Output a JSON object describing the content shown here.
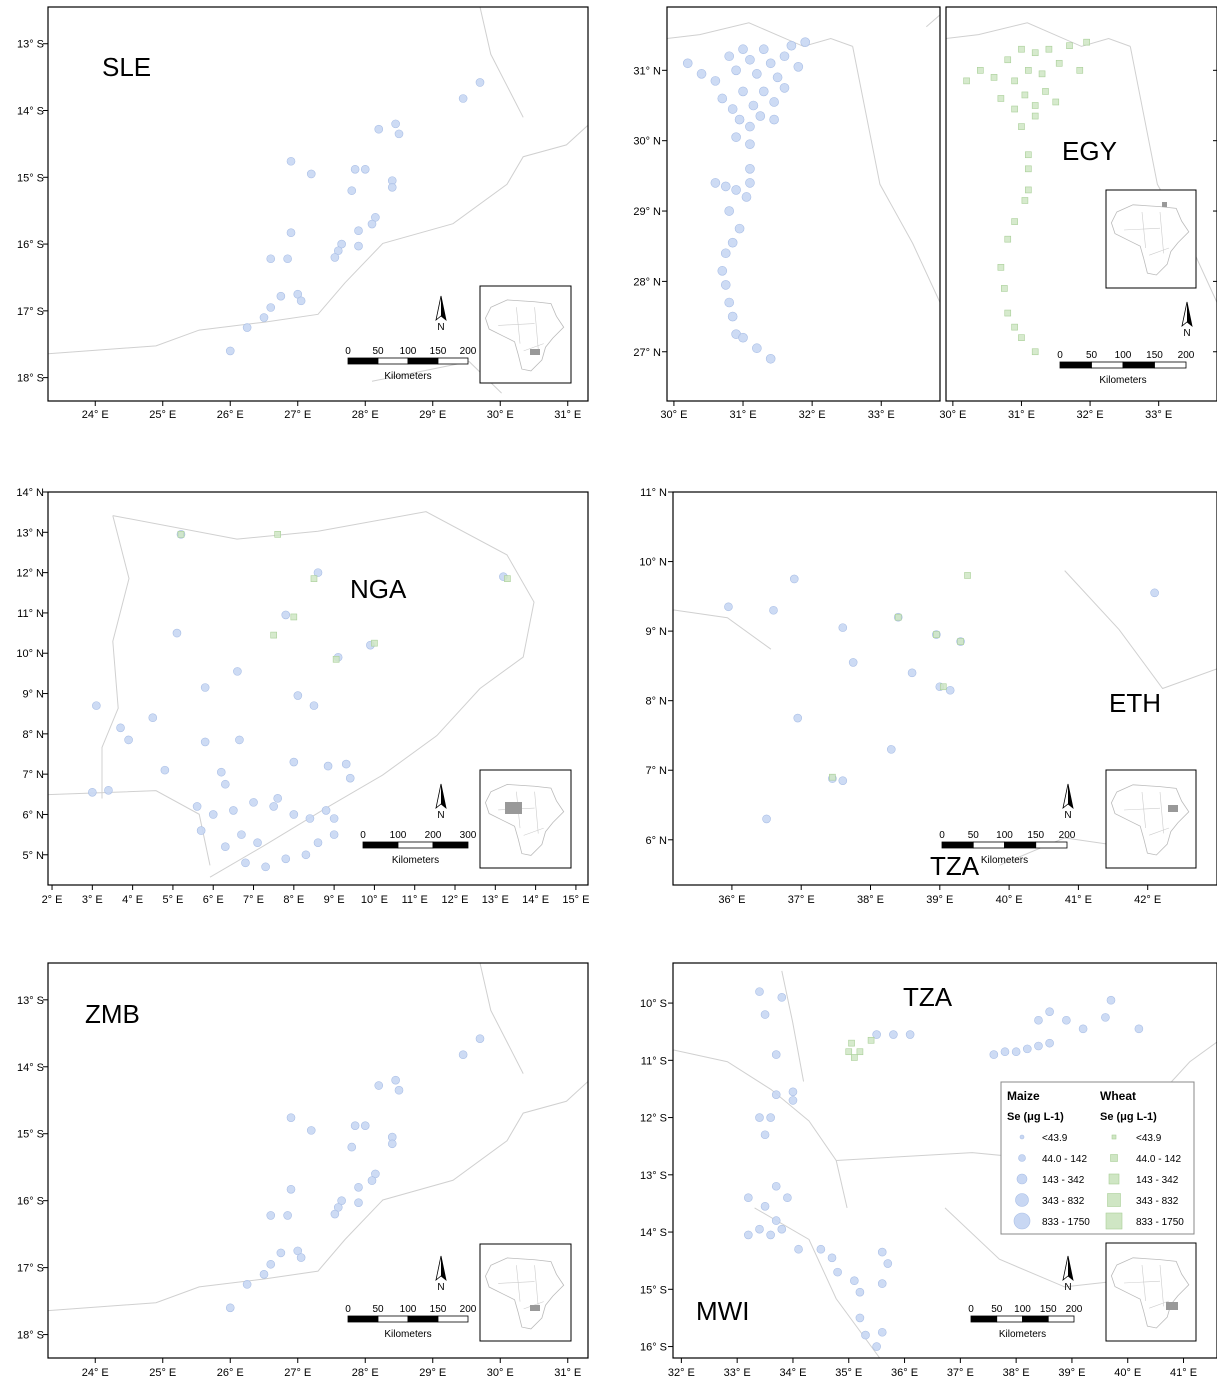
{
  "colors": {
    "maize_fill": "#c8d7f3",
    "maize_stroke": "#aabfe6",
    "wheat_fill": "#cfe6c4",
    "wheat_stroke": "#a9cf98",
    "frame": "#000000",
    "border": "#d0d0d0",
    "inset_marker": "#999999"
  },
  "icons": {
    "north_arrow": "north-arrow-icon",
    "africa_inset": "africa-inset-icon"
  },
  "panels": [
    {
      "id": "sle",
      "country_labels": [
        "SLE"
      ],
      "x_ticks": [
        "24° E",
        "25° E",
        "26° E",
        "27° E",
        "28° E",
        "29° E",
        "30° E",
        "31° E"
      ],
      "y_ticks": [
        "13° S",
        "14° S",
        "15° S",
        "16° S",
        "17° S",
        "18° S"
      ],
      "x_range": [
        23.3,
        31.3
      ],
      "y_range": [
        -18.35,
        -12.45
      ],
      "scale_ticks": [
        "0",
        "50",
        "100",
        "150",
        "200"
      ],
      "scale_unit": "Kilometers",
      "north": "N",
      "maize_points": [
        [
          29.45,
          -13.82
        ],
        [
          29.7,
          -13.58
        ],
        [
          28.2,
          -14.28
        ],
        [
          28.45,
          -14.2
        ],
        [
          28.5,
          -14.35
        ],
        [
          26.9,
          -14.76
        ],
        [
          27.2,
          -14.95
        ],
        [
          27.85,
          -14.88
        ],
        [
          28.0,
          -14.88
        ],
        [
          28.4,
          -15.05
        ],
        [
          28.4,
          -15.15
        ],
        [
          27.8,
          -15.2
        ],
        [
          28.15,
          -15.6
        ],
        [
          28.1,
          -15.7
        ],
        [
          27.9,
          -15.8
        ],
        [
          26.9,
          -15.83
        ],
        [
          27.65,
          -16.0
        ],
        [
          27.6,
          -16.1
        ],
        [
          27.55,
          -16.2
        ],
        [
          27.9,
          -16.03
        ],
        [
          26.6,
          -16.22
        ],
        [
          26.85,
          -16.22
        ],
        [
          26.6,
          -16.95
        ],
        [
          26.5,
          -17.1
        ],
        [
          26.75,
          -16.78
        ],
        [
          27.0,
          -16.75
        ],
        [
          27.05,
          -16.85
        ],
        [
          26.25,
          -17.25
        ],
        [
          26.0,
          -17.6
        ]
      ],
      "wheat_points": []
    },
    {
      "id": "egy-maize",
      "country_labels": [],
      "x_ticks": [
        "30° E",
        "31° E",
        "32° E",
        "33° E"
      ],
      "y_ticks": [
        "31° N",
        "30° N",
        "29° N",
        "28° N",
        "27° N"
      ],
      "x_range": [
        29.9,
        33.85
      ],
      "y_range": [
        26.3,
        31.9
      ],
      "maize_points": [
        [
          30.2,
          31.1
        ],
        [
          30.4,
          30.95
        ],
        [
          30.6,
          30.85
        ],
        [
          30.8,
          31.2
        ],
        [
          30.9,
          31.0
        ],
        [
          31.0,
          31.3
        ],
        [
          31.1,
          31.15
        ],
        [
          31.2,
          30.95
        ],
        [
          31.3,
          31.3
        ],
        [
          31.4,
          31.1
        ],
        [
          31.5,
          30.9
        ],
        [
          31.6,
          31.2
        ],
        [
          31.7,
          31.35
        ],
        [
          31.8,
          31.05
        ],
        [
          31.9,
          31.4
        ],
        [
          30.7,
          30.6
        ],
        [
          30.85,
          30.45
        ],
        [
          31.0,
          30.7
        ],
        [
          31.15,
          30.5
        ],
        [
          31.3,
          30.7
        ],
        [
          31.45,
          30.55
        ],
        [
          31.6,
          30.75
        ],
        [
          30.95,
          30.3
        ],
        [
          31.1,
          30.2
        ],
        [
          31.25,
          30.35
        ],
        [
          31.45,
          30.3
        ],
        [
          30.9,
          30.05
        ],
        [
          31.1,
          29.95
        ],
        [
          31.1,
          29.6
        ],
        [
          31.1,
          29.4
        ],
        [
          31.05,
          29.2
        ],
        [
          30.6,
          29.4
        ],
        [
          30.75,
          29.35
        ],
        [
          30.9,
          29.3
        ],
        [
          30.8,
          29.0
        ],
        [
          30.95,
          28.75
        ],
        [
          30.85,
          28.55
        ],
        [
          30.75,
          28.4
        ],
        [
          30.7,
          28.15
        ],
        [
          30.75,
          27.95
        ],
        [
          30.8,
          27.7
        ],
        [
          30.85,
          27.5
        ],
        [
          30.9,
          27.25
        ],
        [
          31.0,
          27.2
        ],
        [
          31.2,
          27.05
        ],
        [
          31.4,
          26.9
        ]
      ],
      "wheat_points": []
    },
    {
      "id": "egy-wheat",
      "country_labels": [
        "EGY"
      ],
      "x_ticks": [
        "30° E",
        "31° E",
        "32° E",
        "33° E"
      ],
      "y_ticks": [],
      "x_range": [
        29.9,
        33.85
      ],
      "y_range": [
        26.3,
        31.9
      ],
      "scale_ticks": [
        "0",
        "50",
        "100",
        "150",
        "200"
      ],
      "scale_unit": "Kilometers",
      "north": "N",
      "maize_points": [],
      "wheat_points": [
        [
          30.2,
          30.85
        ],
        [
          30.4,
          31.0
        ],
        [
          30.6,
          30.9
        ],
        [
          30.8,
          31.15
        ],
        [
          30.9,
          30.85
        ],
        [
          31.0,
          31.3
        ],
        [
          31.1,
          31.0
        ],
        [
          31.2,
          31.25
        ],
        [
          31.3,
          30.95
        ],
        [
          31.4,
          31.3
        ],
        [
          31.55,
          31.1
        ],
        [
          31.7,
          31.35
        ],
        [
          31.85,
          31.0
        ],
        [
          31.95,
          31.4
        ],
        [
          30.7,
          30.6
        ],
        [
          30.9,
          30.45
        ],
        [
          31.05,
          30.65
        ],
        [
          31.2,
          30.5
        ],
        [
          31.35,
          30.7
        ],
        [
          31.5,
          30.55
        ],
        [
          31.0,
          30.2
        ],
        [
          31.2,
          30.35
        ],
        [
          31.1,
          29.8
        ],
        [
          31.1,
          29.6
        ],
        [
          31.1,
          29.3
        ],
        [
          31.05,
          29.15
        ],
        [
          30.9,
          28.85
        ],
        [
          30.8,
          28.6
        ],
        [
          30.7,
          28.2
        ],
        [
          30.75,
          27.9
        ],
        [
          30.8,
          27.55
        ],
        [
          30.9,
          27.35
        ],
        [
          31.0,
          27.2
        ],
        [
          31.2,
          27.0
        ]
      ]
    },
    {
      "id": "nga",
      "country_labels": [
        "NGA"
      ],
      "x_ticks": [
        "2° E",
        "3° E",
        "4° E",
        "5° E",
        "6° E",
        "7° E",
        "8° E",
        "9° E",
        "10° E",
        "11° E",
        "12° E",
        "13° E",
        "14° E",
        "15° E"
      ],
      "y_ticks": [
        "14° N",
        "13° N",
        "12° N",
        "11° N",
        "10° N",
        "9° N",
        "8° N",
        "7° N",
        "6° N",
        "5° N"
      ],
      "x_range": [
        1.9,
        15.3
      ],
      "y_range": [
        4.25,
        14.0
      ],
      "scale_ticks": [
        "0",
        "100",
        "200",
        "300"
      ],
      "scale_unit": "Kilometers",
      "north": "N",
      "maize_points": [
        [
          5.2,
          12.95
        ],
        [
          8.6,
          12.0
        ],
        [
          13.2,
          11.9
        ],
        [
          7.8,
          10.95
        ],
        [
          5.1,
          10.5
        ],
        [
          9.1,
          9.9
        ],
        [
          9.9,
          10.2
        ],
        [
          3.1,
          8.7
        ],
        [
          5.8,
          9.15
        ],
        [
          6.6,
          9.55
        ],
        [
          8.1,
          8.95
        ],
        [
          8.5,
          8.7
        ],
        [
          3.7,
          8.15
        ],
        [
          3.9,
          7.85
        ],
        [
          4.5,
          8.4
        ],
        [
          6.65,
          7.85
        ],
        [
          5.8,
          7.8
        ],
        [
          4.8,
          7.1
        ],
        [
          6.2,
          7.05
        ],
        [
          6.3,
          6.75
        ],
        [
          8.0,
          7.3
        ],
        [
          8.85,
          7.2
        ],
        [
          9.3,
          7.25
        ],
        [
          9.4,
          6.9
        ],
        [
          3.0,
          6.55
        ],
        [
          3.4,
          6.6
        ],
        [
          5.6,
          6.2
        ],
        [
          6.0,
          6.0
        ],
        [
          6.5,
          6.1
        ],
        [
          7.0,
          6.3
        ],
        [
          7.5,
          6.2
        ],
        [
          7.6,
          6.4
        ],
        [
          8.0,
          6.0
        ],
        [
          8.4,
          5.9
        ],
        [
          8.8,
          6.1
        ],
        [
          9.0,
          5.5
        ],
        [
          6.7,
          5.5
        ],
        [
          7.1,
          5.3
        ],
        [
          5.7,
          5.6
        ],
        [
          6.8,
          4.8
        ],
        [
          7.3,
          4.7
        ],
        [
          7.8,
          4.9
        ],
        [
          8.3,
          5.0
        ],
        [
          8.6,
          5.3
        ],
        [
          9.0,
          5.9
        ],
        [
          6.3,
          5.2
        ]
      ],
      "wheat_points": [
        [
          5.2,
          12.95
        ],
        [
          7.6,
          12.95
        ],
        [
          8.5,
          11.85
        ],
        [
          13.3,
          11.85
        ],
        [
          8.0,
          10.9
        ],
        [
          7.5,
          10.45
        ],
        [
          10.0,
          10.25
        ],
        [
          9.05,
          9.85
        ]
      ]
    },
    {
      "id": "eth",
      "country_labels": [
        "ETH",
        "TZA"
      ],
      "x_ticks": [
        "36° E",
        "37° E",
        "38° E",
        "39° E",
        "40° E",
        "41° E",
        "42° E"
      ],
      "y_ticks": [
        "11° N",
        "10° N",
        "9° N",
        "8° N",
        "7° N",
        "6° N"
      ],
      "x_range": [
        35.15,
        43.0
      ],
      "y_range": [
        5.35,
        11.0
      ],
      "scale_ticks": [
        "0",
        "50",
        "100",
        "150",
        "200"
      ],
      "scale_unit": "Kilometers",
      "north": "N",
      "maize_points": [
        [
          35.95,
          9.35
        ],
        [
          36.9,
          9.75
        ],
        [
          36.6,
          9.3
        ],
        [
          37.6,
          9.05
        ],
        [
          37.75,
          8.55
        ],
        [
          38.6,
          8.4
        ],
        [
          36.95,
          7.75
        ],
        [
          38.4,
          9.2
        ],
        [
          38.95,
          8.95
        ],
        [
          39.3,
          8.85
        ],
        [
          39.0,
          8.2
        ],
        [
          39.15,
          8.15
        ],
        [
          38.3,
          7.3
        ],
        [
          37.45,
          6.88
        ],
        [
          37.6,
          6.85
        ],
        [
          36.5,
          6.3
        ],
        [
          42.1,
          9.55
        ]
      ],
      "wheat_points": [
        [
          39.4,
          9.8
        ],
        [
          38.4,
          9.2
        ],
        [
          38.95,
          8.95
        ],
        [
          39.3,
          8.85
        ],
        [
          39.05,
          8.2
        ],
        [
          37.45,
          6.9
        ]
      ]
    },
    {
      "id": "zmb",
      "country_labels": [
        "ZMB"
      ],
      "x_ticks": [
        "24° E",
        "25° E",
        "26° E",
        "27° E",
        "28° E",
        "29° E",
        "30° E",
        "31° E"
      ],
      "y_ticks": [
        "13° S",
        "14° S",
        "15° S",
        "16° S",
        "17° S",
        "18° S"
      ],
      "x_range": [
        23.3,
        31.3
      ],
      "y_range": [
        -18.35,
        -12.45
      ],
      "scale_ticks": [
        "0",
        "50",
        "100",
        "150",
        "200"
      ],
      "scale_unit": "Kilometers",
      "north": "N",
      "maize_points": [
        [
          29.45,
          -13.82
        ],
        [
          29.7,
          -13.58
        ],
        [
          28.2,
          -14.28
        ],
        [
          28.45,
          -14.2
        ],
        [
          28.5,
          -14.35
        ],
        [
          26.9,
          -14.76
        ],
        [
          27.2,
          -14.95
        ],
        [
          27.85,
          -14.88
        ],
        [
          28.0,
          -14.88
        ],
        [
          28.4,
          -15.05
        ],
        [
          28.4,
          -15.15
        ],
        [
          27.8,
          -15.2
        ],
        [
          28.15,
          -15.6
        ],
        [
          28.1,
          -15.7
        ],
        [
          27.9,
          -15.8
        ],
        [
          26.9,
          -15.83
        ],
        [
          27.65,
          -16.0
        ],
        [
          27.6,
          -16.1
        ],
        [
          27.55,
          -16.2
        ],
        [
          27.9,
          -16.03
        ],
        [
          26.6,
          -16.22
        ],
        [
          26.85,
          -16.22
        ],
        [
          26.6,
          -16.95
        ],
        [
          26.5,
          -17.1
        ],
        [
          26.75,
          -16.78
        ],
        [
          27.0,
          -16.75
        ],
        [
          27.05,
          -16.85
        ],
        [
          26.25,
          -17.25
        ],
        [
          26.0,
          -17.6
        ]
      ],
      "wheat_points": []
    },
    {
      "id": "tza-mwi",
      "country_labels": [
        "TZA",
        "MWI"
      ],
      "x_ticks": [
        "32° E",
        "33° E",
        "34° E",
        "35° E",
        "36° E",
        "37° E",
        "38° E",
        "39° E",
        "40° E",
        "41° E"
      ],
      "y_ticks": [
        "10° S",
        "11° S",
        "12° S",
        "13° S",
        "14° S",
        "15° S",
        "16° S"
      ],
      "x_range": [
        31.85,
        41.6
      ],
      "y_range": [
        -16.2,
        -9.3
      ],
      "scale_ticks": [
        "0",
        "50",
        "100",
        "150",
        "200"
      ],
      "scale_unit": "Kilometers",
      "north": "N",
      "maize_points": [
        [
          33.4,
          -9.8
        ],
        [
          33.8,
          -9.9
        ],
        [
          33.5,
          -10.2
        ],
        [
          33.7,
          -10.9
        ],
        [
          33.7,
          -11.6
        ],
        [
          34.0,
          -11.55
        ],
        [
          34.0,
          -11.7
        ],
        [
          33.4,
          -12.0
        ],
        [
          33.5,
          -12.3
        ],
        [
          33.6,
          -12.0
        ],
        [
          35.5,
          -10.55
        ],
        [
          35.8,
          -10.55
        ],
        [
          36.1,
          -10.55
        ],
        [
          37.6,
          -10.9
        ],
        [
          37.8,
          -10.85
        ],
        [
          38.0,
          -10.85
        ],
        [
          38.2,
          -10.8
        ],
        [
          38.4,
          -10.75
        ],
        [
          38.6,
          -10.7
        ],
        [
          38.4,
          -10.3
        ],
        [
          38.6,
          -10.15
        ],
        [
          38.9,
          -10.3
        ],
        [
          39.2,
          -10.45
        ],
        [
          39.6,
          -10.25
        ],
        [
          39.7,
          -9.95
        ],
        [
          40.2,
          -10.45
        ],
        [
          33.2,
          -13.4
        ],
        [
          33.5,
          -13.55
        ],
        [
          33.7,
          -13.8
        ],
        [
          33.9,
          -13.4
        ],
        [
          33.7,
          -13.2
        ],
        [
          33.8,
          -13.95
        ],
        [
          33.6,
          -14.05
        ],
        [
          33.4,
          -13.95
        ],
        [
          33.2,
          -14.05
        ],
        [
          34.1,
          -14.3
        ],
        [
          34.5,
          -14.3
        ],
        [
          34.7,
          -14.45
        ],
        [
          34.8,
          -14.7
        ],
        [
          35.1,
          -14.85
        ],
        [
          35.2,
          -15.05
        ],
        [
          35.6,
          -14.9
        ],
        [
          35.7,
          -14.55
        ],
        [
          35.6,
          -14.35
        ],
        [
          35.2,
          -15.5
        ],
        [
          35.3,
          -15.8
        ],
        [
          35.6,
          -15.75
        ],
        [
          35.5,
          -16.0
        ]
      ],
      "wheat_points": [
        [
          35.05,
          -10.7
        ],
        [
          35.0,
          -10.85
        ],
        [
          35.2,
          -10.85
        ],
        [
          35.4,
          -10.65
        ],
        [
          35.1,
          -10.95
        ]
      ]
    }
  ],
  "legend": {
    "maize_title": "Maize",
    "wheat_title": "Wheat",
    "maize_unit": "Se (μg L-1)",
    "wheat_unit": "Se (μg L-1)",
    "classes": [
      "<43.9",
      "44.0 - 142",
      "143 - 342",
      "343 - 832",
      "833 - 1750"
    ]
  }
}
